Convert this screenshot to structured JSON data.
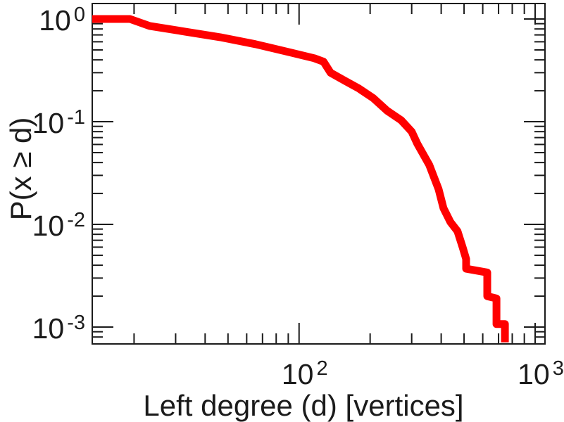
{
  "figure": {
    "background": "#ffffff",
    "frame_color": "#1b1b1b",
    "text_color": "#1b1b1b"
  },
  "chart_data": {
    "type": "line",
    "subtype": "ccdf_step_loglog",
    "title": "",
    "xlabel": "Left degree (d) [vertices]",
    "ylabel": "P(x ≥ d)",
    "x_scale": "log",
    "y_scale": "log",
    "xlim": [
      13.3,
      1101
    ],
    "ylim": [
      0.000685,
      1.415
    ],
    "grid": false,
    "legend": "none",
    "x_major_ticks": [
      100,
      1000
    ],
    "x_major_tick_labels": [
      {
        "base": "10",
        "exp": "2"
      },
      {
        "base": "10",
        "exp": "3"
      }
    ],
    "x_minor_ticks": [
      20,
      30,
      40,
      50,
      60,
      70,
      80,
      90,
      200,
      300,
      400,
      500,
      600,
      700,
      800,
      900
    ],
    "y_major_ticks": [
      1,
      0.1,
      0.01,
      0.001
    ],
    "y_major_tick_labels": [
      {
        "base": "10",
        "exp": "0"
      },
      {
        "base": "10",
        "exp": "-1"
      },
      {
        "base": "10",
        "exp": "-2"
      },
      {
        "base": "10",
        "exp": "-3"
      }
    ],
    "y_minor_ticks": [
      0.9,
      0.8,
      0.7,
      0.6,
      0.5,
      0.4,
      0.3,
      0.2,
      0.09,
      0.08,
      0.07,
      0.06,
      0.05,
      0.04,
      0.03,
      0.02,
      0.009,
      0.008,
      0.007,
      0.006,
      0.005,
      0.004,
      0.003,
      0.002,
      0.0009,
      0.0008
    ],
    "series": [
      {
        "name": "left_degree_ccdf",
        "color": "#ff0000",
        "line_width": 11,
        "points": [
          [
            13.3,
            1.0
          ],
          [
            19.2,
            1.0
          ],
          [
            23.3,
            0.855
          ],
          [
            32.8,
            0.754
          ],
          [
            46.3,
            0.665
          ],
          [
            65.3,
            0.569
          ],
          [
            92.1,
            0.471
          ],
          [
            116,
            0.415
          ],
          [
            127,
            0.384
          ],
          [
            136,
            0.3
          ],
          [
            156,
            0.251
          ],
          [
            179,
            0.211
          ],
          [
            206,
            0.17
          ],
          [
            236,
            0.128
          ],
          [
            271,
            0.103
          ],
          [
            300,
            0.08
          ],
          [
            317,
            0.061
          ],
          [
            356,
            0.038
          ],
          [
            390,
            0.022
          ],
          [
            409,
            0.0144
          ],
          [
            438,
            0.0105
          ],
          [
            469,
            0.0086
          ],
          [
            493,
            0.006
          ],
          [
            510,
            0.0046
          ],
          [
            510,
            0.0037
          ],
          [
            627,
            0.0034
          ],
          [
            627,
            0.002
          ],
          [
            686,
            0.0019
          ],
          [
            686,
            0.00107
          ],
          [
            745,
            0.00107
          ],
          [
            745,
            0.00071
          ]
        ]
      }
    ]
  }
}
